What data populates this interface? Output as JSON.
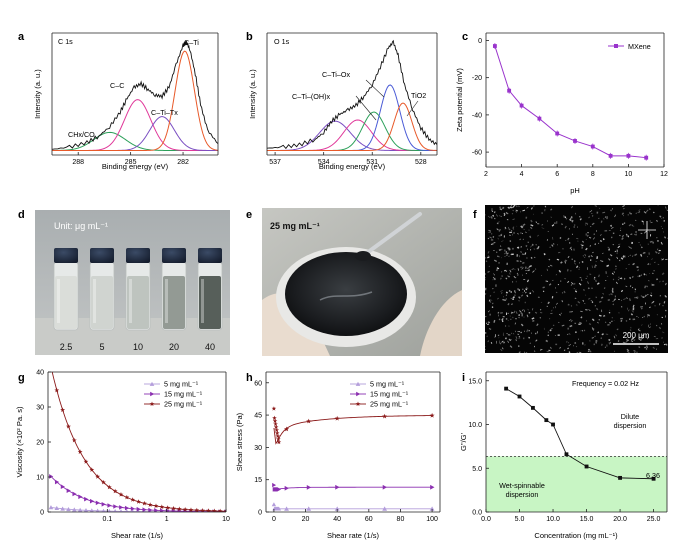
{
  "figure": {
    "panel_letters": [
      "a",
      "b",
      "c",
      "d",
      "e",
      "f",
      "g",
      "h",
      "i"
    ]
  },
  "photo_panels": {
    "d": {
      "unit_label": "Unit: μg mL⁻¹",
      "vials": [
        {
          "label": "2.5",
          "liquid": "#d9dcd8"
        },
        {
          "label": "5",
          "liquid": "#cfd3cf"
        },
        {
          "label": "10",
          "liquid": "#bcc2bd"
        },
        {
          "label": "20",
          "liquid": "#8e968f"
        },
        {
          "label": "40",
          "liquid": "#4f5752"
        }
      ]
    },
    "e": {
      "label": "25 mg mL⁻¹"
    },
    "f": {
      "scale_bar": "200 μm"
    }
  },
  "chart_data": [
    {
      "panel": "a",
      "type": "line",
      "title": "C 1s",
      "xlabel": "Binding energy (eV)",
      "ylabel": "Intensity (a. u.)",
      "xlim": [
        289.5,
        280.0
      ],
      "reversed_x": true,
      "xticks": [
        288,
        285,
        282
      ],
      "annotations": [
        "C–Ti",
        "C–C",
        "C–Ti–Tx",
        "CHx/CO"
      ],
      "series": [
        {
          "name": "data",
          "color": "#111111",
          "x": [
            289.5,
            288.5,
            287.5,
            286.8,
            286.2,
            285.6,
            285.2,
            284.8,
            284.4,
            284.0,
            283.6,
            283.2,
            282.8,
            282.4,
            282.0,
            281.8,
            281.6,
            281.3,
            281.0,
            280.6,
            280.0
          ],
          "y": [
            0.05,
            0.07,
            0.11,
            0.17,
            0.25,
            0.38,
            0.5,
            0.6,
            0.63,
            0.58,
            0.53,
            0.52,
            0.6,
            0.8,
            0.97,
            1.0,
            0.93,
            0.72,
            0.45,
            0.22,
            0.1
          ]
        },
        {
          "name": "CHx/CO",
          "color": "#2ca05a",
          "center": 286.2,
          "height": 0.16,
          "width": 0.9
        },
        {
          "name": "C–C",
          "color": "#e0399a",
          "center": 284.6,
          "height": 0.45,
          "width": 0.75
        },
        {
          "name": "C–Ti–Tx",
          "color": "#7b4fc2",
          "center": 283.2,
          "height": 0.3,
          "width": 0.7
        },
        {
          "name": "C–Ti",
          "color": "#e85a2a",
          "center": 281.9,
          "height": 0.88,
          "width": 0.55
        }
      ]
    },
    {
      "panel": "b",
      "type": "line",
      "title": "O 1s",
      "xlabel": "Binding energy (eV)",
      "ylabel": "Intensity (a. u.)",
      "xlim": [
        537.5,
        527.0
      ],
      "reversed_x": true,
      "xticks": [
        537,
        534,
        531,
        528
      ],
      "annotations": [
        "C–Ti–Ox",
        "C–Ti–(OH)x",
        "TiO2"
      ],
      "series": [
        {
          "name": "data",
          "color": "#111111",
          "x": [
            537.5,
            536.5,
            535.5,
            534.5,
            534.0,
            533.5,
            533.0,
            532.5,
            532.0,
            531.5,
            531.0,
            530.5,
            530.0,
            529.7,
            529.4,
            529.0,
            528.5,
            528.0,
            527.5,
            527.0
          ],
          "y": [
            0.06,
            0.07,
            0.09,
            0.14,
            0.2,
            0.3,
            0.36,
            0.4,
            0.44,
            0.52,
            0.62,
            0.78,
            0.95,
            1.0,
            0.88,
            0.62,
            0.4,
            0.24,
            0.14,
            0.09
          ]
        },
        {
          "name": "peak-1",
          "color": "#7b4fc2",
          "center": 533.3,
          "height": 0.26,
          "width": 0.95
        },
        {
          "name": "peak-2",
          "color": "#e0399a",
          "center": 531.9,
          "height": 0.27,
          "width": 0.85
        },
        {
          "name": "C–Ti–(OH)x",
          "color": "#2ca05a",
          "center": 530.9,
          "height": 0.34,
          "width": 0.7
        },
        {
          "name": "C–Ti–Ox",
          "color": "#4a5bd6",
          "center": 529.9,
          "height": 0.58,
          "width": 0.6
        },
        {
          "name": "TiO2",
          "color": "#e85a2a",
          "center": 529.1,
          "height": 0.42,
          "width": 0.55
        }
      ]
    },
    {
      "panel": "c",
      "type": "line",
      "xlabel": "pH",
      "ylabel": "Zeta potential (mV)",
      "xlim": [
        2,
        12
      ],
      "ylim": [
        -68,
        4
      ],
      "xticks": [
        2,
        4,
        6,
        8,
        10,
        12
      ],
      "yticks": [
        0,
        -20,
        -40,
        -60
      ],
      "legend": "top-right",
      "series": [
        {
          "name": "MXene",
          "color": "#9933cc",
          "x": [
            2.5,
            3.3,
            4.0,
            5.0,
            6.0,
            7.0,
            8.0,
            9.0,
            10.0,
            11.0
          ],
          "y": [
            -3,
            -27,
            -35,
            -42,
            -50,
            -54,
            -57,
            -62,
            -62,
            -63
          ]
        }
      ]
    },
    {
      "panel": "g",
      "type": "line",
      "xlabel": "Shear rate (1/s)",
      "ylabel": "Viscosity (×10² Pa. s)",
      "xscale": "log",
      "xlim": [
        0.01,
        10
      ],
      "ylim": [
        0,
        40
      ],
      "xticks": [
        0.1,
        1,
        10
      ],
      "yticks": [
        0,
        10,
        20,
        30,
        40
      ],
      "legend": "top-right",
      "series": [
        {
          "name": "5 mg mL⁻¹",
          "color": "#b39ddb",
          "marker": "triangle-up",
          "A": 0.045,
          "n": 0.75
        },
        {
          "name": "15 mg mL⁻¹",
          "color": "#8b2fb0",
          "marker": "triangle-right",
          "A": 0.35,
          "n": 0.75
        },
        {
          "name": "25 mg mL⁻¹",
          "color": "#8b1a1a",
          "marker": "star",
          "A": 1.25,
          "n": 0.78
        }
      ]
    },
    {
      "panel": "h",
      "type": "line",
      "xlabel": "Shear rate (1/s)",
      "ylabel": "Shear stress (Pa)",
      "xlim": [
        -5,
        105
      ],
      "ylim": [
        0,
        65
      ],
      "xticks": [
        0,
        20,
        40,
        60,
        80,
        100
      ],
      "yticks": [
        0,
        15,
        30,
        45,
        60
      ],
      "legend": "top-right",
      "series": [
        {
          "name": "5 mg mL⁻¹",
          "color": "#b39ddb",
          "marker": "triangle-up",
          "level": 1.5
        },
        {
          "name": "15 mg mL⁻¹",
          "color": "#8b2fb0",
          "marker": "triangle-right",
          "level": 11.5
        },
        {
          "name": "25 mg mL⁻¹",
          "color": "#8b1a1a",
          "marker": "star",
          "level": 45
        }
      ]
    },
    {
      "panel": "i",
      "type": "line",
      "xlabel": "Concentration (mg mL⁻¹)",
      "ylabel": "G''/G'",
      "xlim": [
        0,
        27
      ],
      "ylim": [
        0,
        16
      ],
      "xticks": [
        0,
        5,
        10,
        15,
        20,
        25
      ],
      "yticks": [
        0,
        5,
        10,
        15
      ],
      "xticklabels": [
        "0.0",
        "5.0",
        "10.0",
        "15.0",
        "20.0",
        "25.0"
      ],
      "yticklabels": [
        "0.0",
        "5.0",
        "10.0",
        "15.0"
      ],
      "annotation": "Frequency = 0.02 Hz",
      "threshold": 6.36,
      "threshold_label": "6.36",
      "regions": [
        "Dilute dispersion",
        "Wet-spinnable dispersion"
      ],
      "series": [
        {
          "name": "G''/G'",
          "color": "#111111",
          "x": [
            3,
            5,
            7,
            9,
            10,
            12,
            15,
            20,
            25
          ],
          "y": [
            14.1,
            13.2,
            11.9,
            10.5,
            10.0,
            6.6,
            5.2,
            3.9,
            3.8
          ]
        }
      ]
    }
  ]
}
